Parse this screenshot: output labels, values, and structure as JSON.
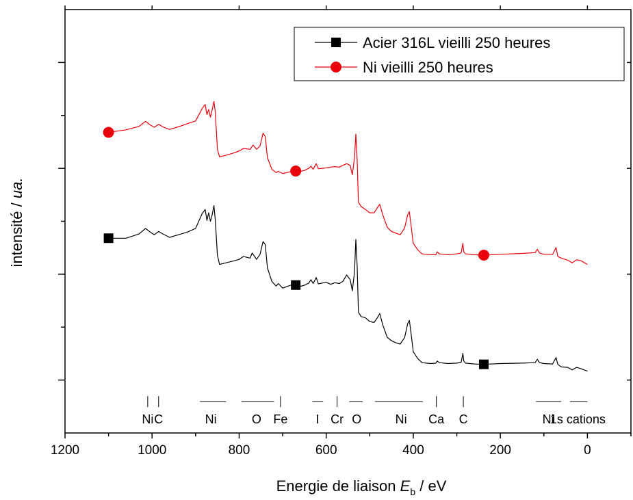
{
  "chart_data": {
    "type": "line",
    "title": "",
    "xlabel": {
      "prefix": "Energie de liaison ",
      "symbol": "E",
      "subscript": "b",
      "suffix": " / eV"
    },
    "ylabel": {
      "prefix": "intensité / ",
      "italic": "ua."
    },
    "xlim": [
      1200,
      -100
    ],
    "ylim": [
      0,
      100
    ],
    "x_ticks": [
      1200,
      1000,
      800,
      600,
      400,
      200,
      0
    ],
    "x_tick_labels": [
      "1200",
      "1000",
      "800",
      "600",
      "400",
      "200",
      "0"
    ],
    "y_tick_labels_shown": false,
    "grid": false,
    "legend_position": "top-right",
    "colors": {
      "black_series": "#000000",
      "red_series": "#e8000b"
    },
    "series": [
      {
        "name": "Acier 316L vieilli 250 heures",
        "color": "#000000",
        "marker": "square",
        "marker_x": [
          1100,
          670,
          238
        ],
        "points": [
          [
            1100,
            46
          ],
          [
            1060,
            46
          ],
          [
            1030,
            47
          ],
          [
            1015,
            48.3
          ],
          [
            1005,
            47.5
          ],
          [
            995,
            46.8
          ],
          [
            985,
            47.6
          ],
          [
            975,
            47
          ],
          [
            960,
            46.2
          ],
          [
            940,
            46.8
          ],
          [
            920,
            47.4
          ],
          [
            900,
            48.3
          ],
          [
            885,
            51.8
          ],
          [
            878,
            52.8
          ],
          [
            874,
            50.2
          ],
          [
            870,
            52
          ],
          [
            866,
            50
          ],
          [
            862,
            51.5
          ],
          [
            858,
            53.7
          ],
          [
            855,
            50.5
          ],
          [
            850,
            42
          ],
          [
            845,
            39.8
          ],
          [
            830,
            40.2
          ],
          [
            810,
            40.7
          ],
          [
            800,
            41
          ],
          [
            790,
            41.7
          ],
          [
            775,
            41.3
          ],
          [
            770,
            42.5
          ],
          [
            760,
            41
          ],
          [
            752,
            42.2
          ],
          [
            745,
            45.2
          ],
          [
            740,
            44.5
          ],
          [
            735,
            39
          ],
          [
            725,
            35.8
          ],
          [
            715,
            34.7
          ],
          [
            710,
            35.3
          ],
          [
            700,
            34.2
          ],
          [
            690,
            34.6
          ],
          [
            675,
            35.1
          ],
          [
            660,
            34.6
          ],
          [
            650,
            34.9
          ],
          [
            640,
            35.4
          ],
          [
            635,
            36.2
          ],
          [
            630,
            35.3
          ],
          [
            623,
            36.7
          ],
          [
            618,
            35.2
          ],
          [
            600,
            35.6
          ],
          [
            590,
            35.1
          ],
          [
            580,
            35.5
          ],
          [
            570,
            35.3
          ],
          [
            562,
            35.8
          ],
          [
            553,
            37.3
          ],
          [
            545,
            36.2
          ],
          [
            540,
            33.6
          ],
          [
            535,
            38
          ],
          [
            532,
            45.7
          ],
          [
            529,
            39.5
          ],
          [
            526,
            28.5
          ],
          [
            520,
            27.5
          ],
          [
            510,
            27.2
          ],
          [
            500,
            26.3
          ],
          [
            490,
            26.1
          ],
          [
            482,
            27.3
          ],
          [
            477,
            28.2
          ],
          [
            470,
            25.5
          ],
          [
            460,
            22.6
          ],
          [
            450,
            21.8
          ],
          [
            440,
            21.3
          ],
          [
            430,
            21
          ],
          [
            420,
            22.5
          ],
          [
            413,
            25.8
          ],
          [
            409,
            26.6
          ],
          [
            405,
            23.5
          ],
          [
            400,
            19.2
          ],
          [
            390,
            17.6
          ],
          [
            380,
            16.6
          ],
          [
            370,
            16.5
          ],
          [
            360,
            16.4
          ],
          [
            348,
            16.5
          ],
          [
            345,
            17
          ],
          [
            340,
            16.6
          ],
          [
            320,
            16.4
          ],
          [
            300,
            16.5
          ],
          [
            290,
            16.7
          ],
          [
            286,
            18.8
          ],
          [
            284,
            17
          ],
          [
            280,
            16.5
          ],
          [
            260,
            16.3
          ],
          [
            240,
            16.2
          ],
          [
            200,
            16.4
          ],
          [
            150,
            16.5
          ],
          [
            120,
            16.6
          ],
          [
            115,
            17.4
          ],
          [
            110,
            16.6
          ],
          [
            100,
            16.4
          ],
          [
            80,
            16.3
          ],
          [
            72,
            17.8
          ],
          [
            68,
            16.2
          ],
          [
            60,
            15.6
          ],
          [
            45,
            15.5
          ],
          [
            35,
            14.9
          ],
          [
            25,
            15.5
          ],
          [
            15,
            15.2
          ],
          [
            5,
            14.8
          ],
          [
            0,
            14.6
          ]
        ]
      },
      {
        "name": "Ni vieilli 250 heures",
        "color": "#e8000b",
        "marker": "circle",
        "marker_x": [
          1100,
          670,
          238
        ],
        "points": [
          [
            1100,
            71
          ],
          [
            1060,
            71.6
          ],
          [
            1030,
            72.4
          ],
          [
            1015,
            73.6
          ],
          [
            1005,
            72.8
          ],
          [
            995,
            72.2
          ],
          [
            985,
            72.9
          ],
          [
            975,
            72.3
          ],
          [
            960,
            71.7
          ],
          [
            940,
            72.3
          ],
          [
            920,
            73
          ],
          [
            900,
            73.7
          ],
          [
            885,
            76.6
          ],
          [
            878,
            77.6
          ],
          [
            874,
            75.2
          ],
          [
            870,
            76.4
          ],
          [
            866,
            74.6
          ],
          [
            862,
            76.3
          ],
          [
            858,
            78.3
          ],
          [
            855,
            76
          ],
          [
            850,
            67
          ],
          [
            845,
            65.2
          ],
          [
            830,
            65.6
          ],
          [
            810,
            66.2
          ],
          [
            800,
            66.6
          ],
          [
            790,
            67.2
          ],
          [
            775,
            67
          ],
          [
            768,
            68
          ],
          [
            760,
            67
          ],
          [
            752,
            67.8
          ],
          [
            745,
            70.8
          ],
          [
            740,
            70
          ],
          [
            735,
            65
          ],
          [
            725,
            62.3
          ],
          [
            715,
            61.5
          ],
          [
            710,
            61.8
          ],
          [
            700,
            61.3
          ],
          [
            690,
            61.5
          ],
          [
            675,
            61.9
          ],
          [
            660,
            61.8
          ],
          [
            650,
            62
          ],
          [
            640,
            62.5
          ],
          [
            635,
            63
          ],
          [
            630,
            62.3
          ],
          [
            623,
            63.6
          ],
          [
            618,
            62.4
          ],
          [
            600,
            62.6
          ],
          [
            590,
            62.8
          ],
          [
            580,
            62.9
          ],
          [
            570,
            62.8
          ],
          [
            562,
            63.2
          ],
          [
            553,
            63.6
          ],
          [
            545,
            63.2
          ],
          [
            540,
            61
          ],
          [
            535,
            65
          ],
          [
            532,
            70.6
          ],
          [
            529,
            64.5
          ],
          [
            526,
            54.5
          ],
          [
            520,
            53.5
          ],
          [
            510,
            52.8
          ],
          [
            500,
            52
          ],
          [
            490,
            52
          ],
          [
            482,
            53.3
          ],
          [
            477,
            54
          ],
          [
            470,
            51.5
          ],
          [
            460,
            48.6
          ],
          [
            450,
            47.6
          ],
          [
            440,
            47.2
          ],
          [
            430,
            46.8
          ],
          [
            420,
            48.4
          ],
          [
            413,
            51.5
          ],
          [
            409,
            52.3
          ],
          [
            405,
            49
          ],
          [
            400,
            44.8
          ],
          [
            390,
            43.3
          ],
          [
            380,
            42.3
          ],
          [
            370,
            42.2
          ],
          [
            360,
            42.1
          ],
          [
            348,
            42.1
          ],
          [
            345,
            42.8
          ],
          [
            340,
            42.3
          ],
          [
            320,
            42.1
          ],
          [
            300,
            42.3
          ],
          [
            290,
            42.5
          ],
          [
            286,
            44.8
          ],
          [
            284,
            42.8
          ],
          [
            280,
            42.3
          ],
          [
            260,
            42.1
          ],
          [
            240,
            42
          ],
          [
            200,
            42.2
          ],
          [
            150,
            42.4
          ],
          [
            120,
            42.6
          ],
          [
            115,
            43.4
          ],
          [
            110,
            42.5
          ],
          [
            100,
            42.2
          ],
          [
            80,
            42.2
          ],
          [
            72,
            43.8
          ],
          [
            68,
            41.7
          ],
          [
            60,
            41.3
          ],
          [
            45,
            40.8
          ],
          [
            35,
            40.2
          ],
          [
            25,
            40.9
          ],
          [
            15,
            40.7
          ],
          [
            5,
            40.1
          ],
          [
            0,
            39.8
          ]
        ]
      }
    ],
    "annotations": [
      {
        "text": "Ni",
        "x": 1010,
        "marker": "tick"
      },
      {
        "text": "C",
        "x": 985,
        "marker": "tick"
      },
      {
        "text": "Ni",
        "x": 865,
        "marker": "bar",
        "x_from": 890,
        "x_to": 830
      },
      {
        "text": "O",
        "x": 760,
        "marker": "bar",
        "x_from": 795,
        "x_to": 720
      },
      {
        "text": "Fe",
        "x": 705,
        "marker": "tick"
      },
      {
        "text": "I",
        "x": 620,
        "marker": "bar",
        "x_from": 632,
        "x_to": 607
      },
      {
        "text": "Cr",
        "x": 575,
        "marker": "tick"
      },
      {
        "text": "O",
        "x": 530,
        "marker": "bar",
        "x_from": 547,
        "x_to": 516
      },
      {
        "text": "Ni",
        "x": 428,
        "marker": "bar",
        "x_from": 488,
        "x_to": 378
      },
      {
        "text": "Ca",
        "x": 347,
        "marker": "tick"
      },
      {
        "text": "C",
        "x": 285,
        "marker": "tick"
      },
      {
        "text": "Ni",
        "x": 90,
        "marker": "bar",
        "x_from": 118,
        "x_to": 60
      },
      {
        "text": "1s cations",
        "x": 22,
        "marker": "bar",
        "x_from": 40,
        "x_to": 0
      }
    ]
  }
}
